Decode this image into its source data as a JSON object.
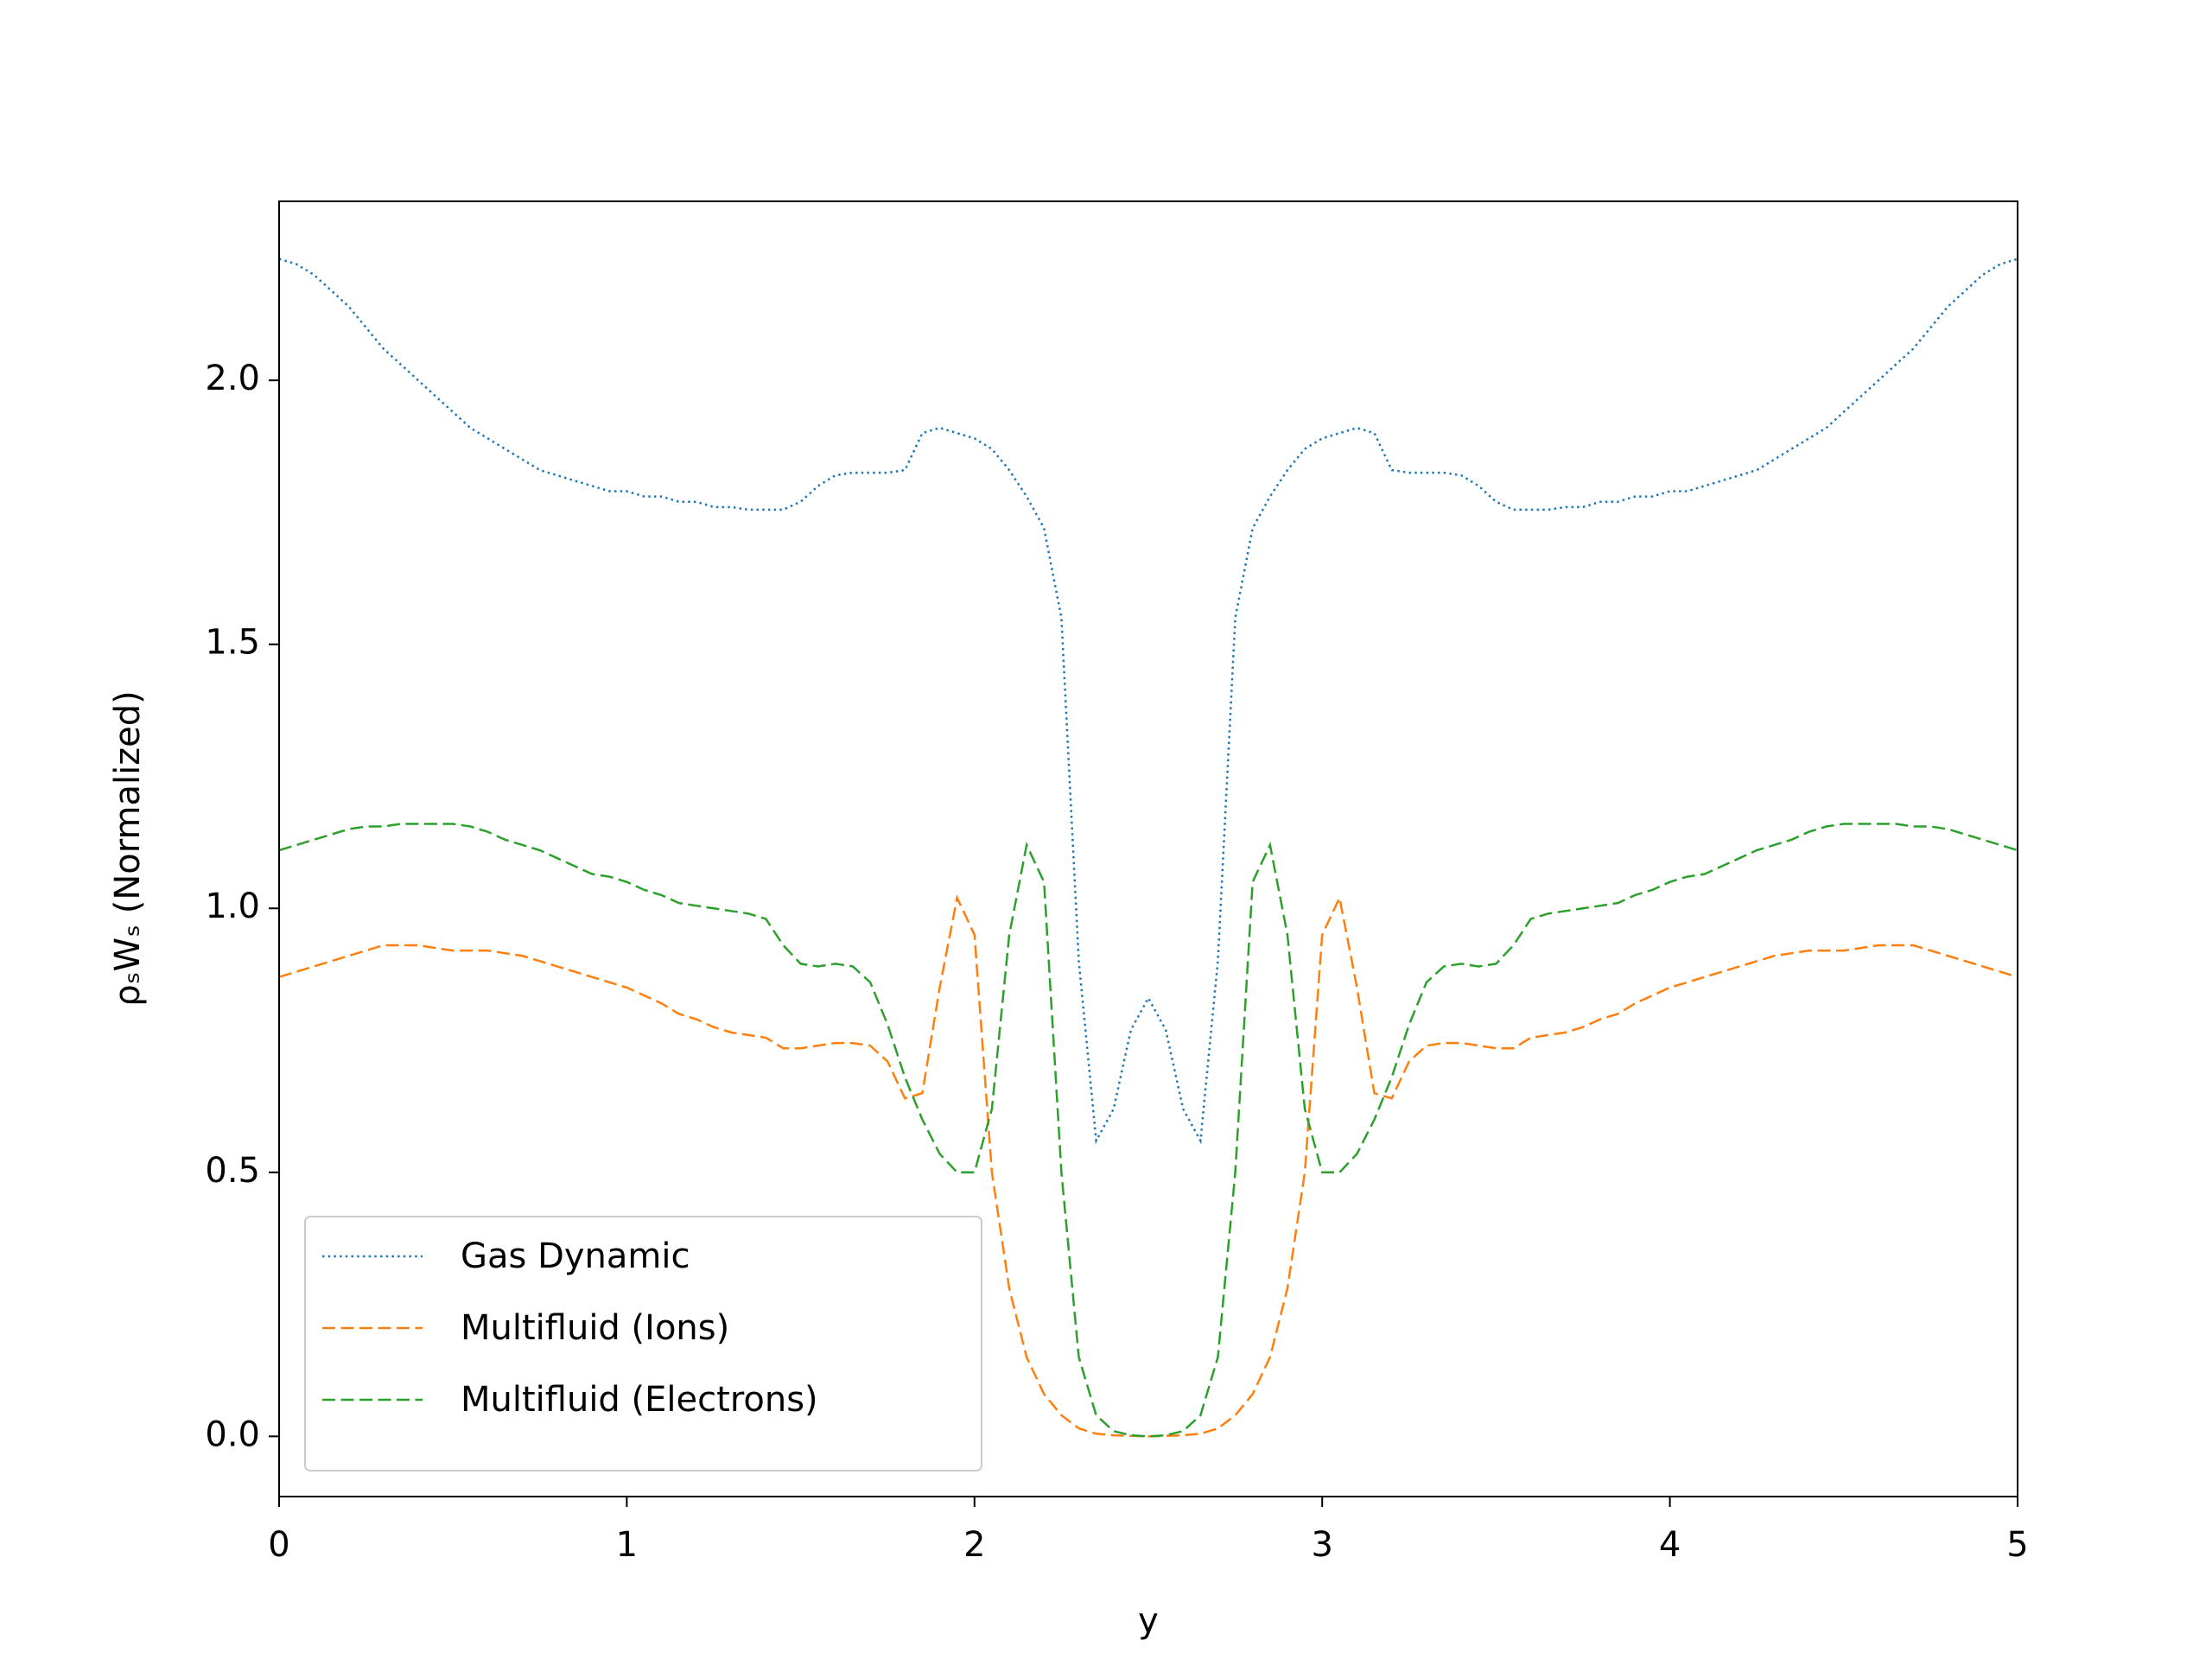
{
  "chart_data": {
    "type": "line",
    "xlabel": "y",
    "ylabel": "ρₛWₛ (Normalized)",
    "x": [
      0,
      0.05,
      0.1,
      0.15,
      0.2,
      0.25,
      0.3,
      0.35,
      0.4,
      0.45,
      0.5,
      0.55,
      0.6,
      0.65,
      0.7,
      0.75,
      0.8,
      0.85,
      0.9,
      0.95,
      1,
      1.05,
      1.1,
      1.15,
      1.2,
      1.25,
      1.3,
      1.35,
      1.4,
      1.45,
      1.5,
      1.55,
      1.6,
      1.65,
      1.7,
      1.75,
      1.8,
      1.85,
      1.9,
      1.95,
      2,
      2.05,
      2.1,
      2.15,
      2.2,
      2.25,
      2.3,
      2.35,
      2.4,
      2.45,
      2.5,
      2.55,
      2.6,
      2.65,
      2.7,
      2.75,
      2.8,
      2.85,
      2.9,
      2.95,
      3,
      3.05,
      3.1,
      3.15,
      3.2,
      3.25,
      3.3,
      3.35,
      3.4,
      3.45,
      3.5,
      3.55,
      3.6,
      3.65,
      3.7,
      3.75,
      3.8,
      3.85,
      3.9,
      3.95,
      4,
      4.05,
      4.1,
      4.15,
      4.2,
      4.25,
      4.3,
      4.35,
      4.4,
      4.45,
      4.5,
      4.55,
      4.6,
      4.65,
      4.7,
      4.75,
      4.8,
      4.85,
      4.9,
      4.95,
      5
    ],
    "series": [
      {
        "name": "Gas Dynamic",
        "color": "#1f77b4",
        "linestyle": "dotted",
        "values": [
          2.23,
          2.22,
          2.2,
          2.17,
          2.14,
          2.1,
          2.06,
          2.03,
          2.0,
          1.97,
          1.94,
          1.91,
          1.89,
          1.87,
          1.85,
          1.83,
          1.82,
          1.81,
          1.8,
          1.79,
          1.79,
          1.78,
          1.78,
          1.77,
          1.77,
          1.76,
          1.76,
          1.755,
          1.755,
          1.755,
          1.77,
          1.8,
          1.82,
          1.825,
          1.825,
          1.825,
          1.83,
          1.9,
          1.91,
          1.9,
          1.89,
          1.87,
          1.83,
          1.78,
          1.72,
          1.55,
          0.9,
          0.56,
          0.62,
          0.77,
          0.83,
          0.77,
          0.62,
          0.56,
          0.9,
          1.55,
          1.72,
          1.78,
          1.83,
          1.87,
          1.89,
          1.9,
          1.91,
          1.9,
          1.83,
          1.825,
          1.825,
          1.825,
          1.82,
          1.8,
          1.77,
          1.755,
          1.755,
          1.755,
          1.76,
          1.76,
          1.77,
          1.77,
          1.78,
          1.78,
          1.79,
          1.79,
          1.8,
          1.81,
          1.82,
          1.83,
          1.85,
          1.87,
          1.89,
          1.91,
          1.94,
          1.97,
          2.0,
          2.03,
          2.06,
          2.1,
          2.14,
          2.17,
          2.2,
          2.22,
          2.23
        ]
      },
      {
        "name": "Multifluid (Ions)",
        "color": "#ff7f0e",
        "linestyle": "dashed",
        "values": [
          0.87,
          0.88,
          0.89,
          0.9,
          0.91,
          0.92,
          0.93,
          0.93,
          0.93,
          0.925,
          0.92,
          0.92,
          0.92,
          0.915,
          0.91,
          0.9,
          0.89,
          0.88,
          0.87,
          0.86,
          0.85,
          0.835,
          0.82,
          0.8,
          0.79,
          0.775,
          0.765,
          0.76,
          0.755,
          0.735,
          0.735,
          0.74,
          0.745,
          0.745,
          0.74,
          0.71,
          0.64,
          0.65,
          0.85,
          1.02,
          0.95,
          0.5,
          0.28,
          0.15,
          0.08,
          0.04,
          0.015,
          0.005,
          0.002,
          0.001,
          0.0,
          0.001,
          0.002,
          0.005,
          0.015,
          0.04,
          0.08,
          0.15,
          0.28,
          0.5,
          0.95,
          1.02,
          0.85,
          0.65,
          0.64,
          0.71,
          0.74,
          0.745,
          0.745,
          0.74,
          0.735,
          0.735,
          0.755,
          0.76,
          0.765,
          0.775,
          0.79,
          0.8,
          0.82,
          0.835,
          0.85,
          0.86,
          0.87,
          0.88,
          0.89,
          0.9,
          0.91,
          0.915,
          0.92,
          0.92,
          0.92,
          0.925,
          0.93,
          0.93,
          0.93,
          0.92,
          0.91,
          0.9,
          0.89,
          0.88,
          0.87
        ]
      },
      {
        "name": "Multifluid (Electrons)",
        "color": "#2ca02c",
        "linestyle": "dashed",
        "values": [
          1.11,
          1.12,
          1.13,
          1.14,
          1.15,
          1.155,
          1.155,
          1.16,
          1.16,
          1.16,
          1.16,
          1.155,
          1.145,
          1.13,
          1.12,
          1.11,
          1.095,
          1.08,
          1.065,
          1.06,
          1.05,
          1.035,
          1.025,
          1.01,
          1.005,
          1.0,
          0.995,
          0.99,
          0.98,
          0.93,
          0.895,
          0.89,
          0.895,
          0.89,
          0.86,
          0.78,
          0.68,
          0.6,
          0.535,
          0.5,
          0.5,
          0.62,
          0.95,
          1.12,
          1.05,
          0.5,
          0.15,
          0.04,
          0.01,
          0.002,
          0.0,
          0.002,
          0.01,
          0.04,
          0.15,
          0.5,
          1.05,
          1.12,
          0.95,
          0.62,
          0.5,
          0.5,
          0.535,
          0.6,
          0.68,
          0.78,
          0.86,
          0.89,
          0.895,
          0.89,
          0.895,
          0.93,
          0.98,
          0.99,
          0.995,
          1.0,
          1.005,
          1.01,
          1.025,
          1.035,
          1.05,
          1.06,
          1.065,
          1.08,
          1.095,
          1.11,
          1.12,
          1.13,
          1.145,
          1.155,
          1.16,
          1.16,
          1.16,
          1.16,
          1.155,
          1.155,
          1.15,
          1.14,
          1.13,
          1.12,
          1.11
        ]
      }
    ],
    "xlim": [
      0,
      5
    ],
    "xticks": [
      0,
      1,
      2,
      3,
      4,
      5
    ],
    "ylim": [
      -0.114,
      2.339
    ],
    "yticks": [
      {
        "value": 0,
        "label": "0.0"
      },
      {
        "value": 0.5,
        "label": "0.5"
      },
      {
        "value": 1,
        "label": "1.0"
      },
      {
        "value": 1.5,
        "label": "1.5"
      },
      {
        "value": 2,
        "label": "2.0"
      }
    ],
    "grid": false,
    "legend": "lower left"
  }
}
